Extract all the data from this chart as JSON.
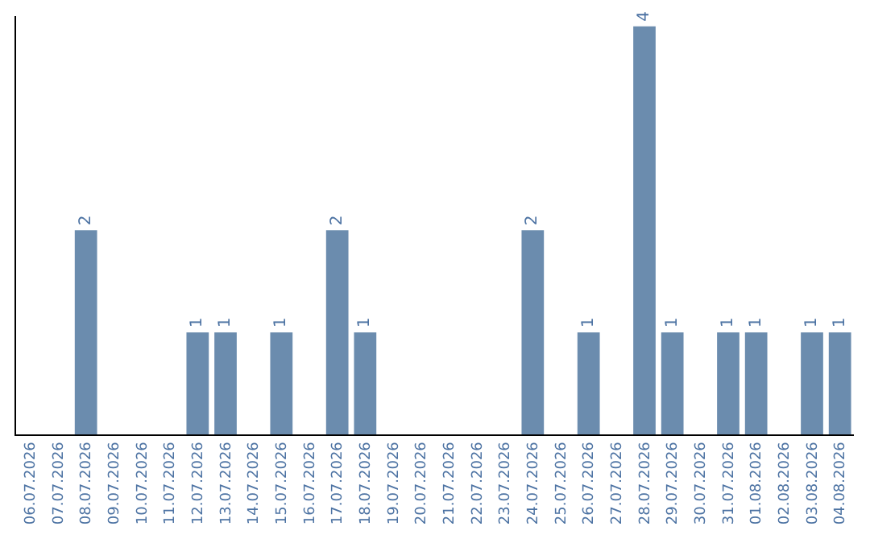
{
  "chart_data": {
    "type": "bar",
    "categories": [
      "06.07.2026",
      "07.07.2026",
      "08.07.2026",
      "09.07.2026",
      "10.07.2026",
      "11.07.2026",
      "12.07.2026",
      "13.07.2026",
      "14.07.2026",
      "15.07.2026",
      "16.07.2026",
      "17.07.2026",
      "18.07.2026",
      "19.07.2026",
      "20.07.2026",
      "21.07.2026",
      "22.07.2026",
      "23.07.2026",
      "24.07.2026",
      "25.07.2026",
      "26.07.2026",
      "27.07.2026",
      "28.07.2026",
      "29.07.2026",
      "30.07.2026",
      "31.07.2026",
      "01.08.2026",
      "02.08.2026",
      "03.08.2026",
      "04.08.2026"
    ],
    "values": [
      0,
      0,
      2,
      0,
      0,
      0,
      1,
      1,
      0,
      1,
      0,
      2,
      1,
      0,
      0,
      0,
      0,
      0,
      2,
      0,
      1,
      0,
      4,
      1,
      0,
      1,
      1,
      0,
      1,
      1
    ],
    "value_labels": [
      null,
      null,
      "2",
      null,
      null,
      null,
      "1",
      "1",
      null,
      "1",
      null,
      "2",
      "1",
      null,
      null,
      null,
      null,
      null,
      "2",
      null,
      "1",
      null,
      "4",
      "1",
      null,
      "1",
      "1",
      null,
      "1",
      "1"
    ],
    "color": "#6b8cae",
    "ylim": [
      0,
      4.1
    ],
    "tick_labels": "x"
  }
}
